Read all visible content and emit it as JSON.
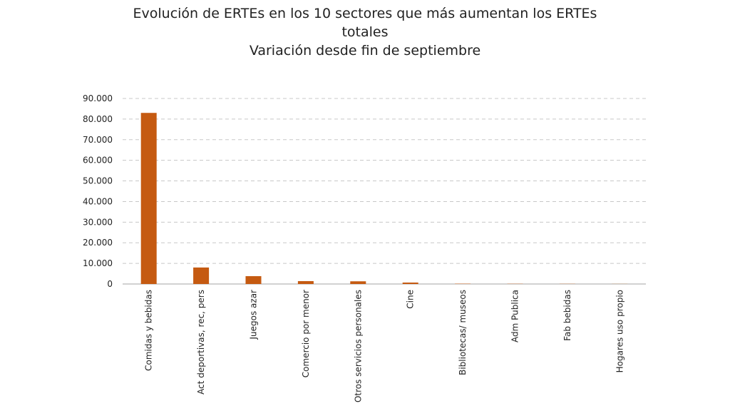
{
  "chart_data": {
    "type": "bar",
    "title_lines": [
      "Evolución de ERTEs en los 10 sectores que más aumentan los ERTEs",
      "totales",
      "Variación desde fin de septiembre"
    ],
    "xlabel": "",
    "ylabel": "",
    "categories": [
      "Comidas y bebidas",
      "Act deportivas, rec, pers",
      "Juegos azar",
      "Comercio por menor",
      "Otros servicios personales",
      "Cine",
      "Bibliotecas/ museos",
      "Adm Publica",
      "Fab bebidas",
      "Hogares uso propio"
    ],
    "values": [
      83000,
      8000,
      3800,
      1400,
      1300,
      700,
      150,
      100,
      80,
      50
    ],
    "ylim": [
      0,
      90000
    ],
    "yticks": [
      0,
      10000,
      20000,
      30000,
      40000,
      50000,
      60000,
      70000,
      80000,
      90000
    ],
    "ytick_labels": [
      "0",
      "10.000",
      "20.000",
      "30.000",
      "40.000",
      "50.000",
      "60.000",
      "70.000",
      "80.000",
      "90.000"
    ],
    "grid": true,
    "grid_style": "dashed",
    "legend": "none",
    "bar_color": "#c55a11",
    "grid_color": "#c8c8c8",
    "axis_color": "#a6a6a6"
  }
}
